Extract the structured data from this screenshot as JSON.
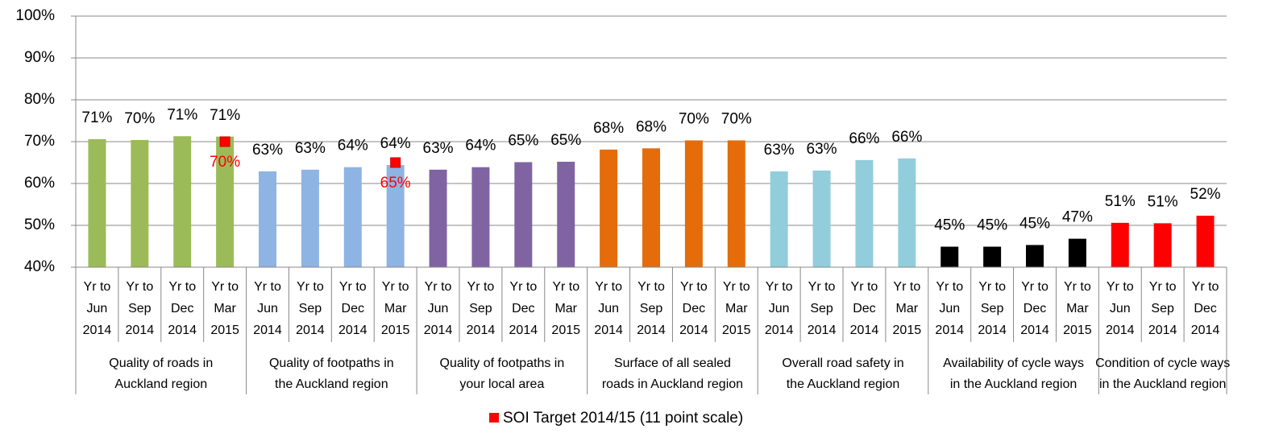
{
  "chart_data": {
    "type": "bar",
    "ylim": [
      40,
      100
    ],
    "yticks": [
      {
        "value": 40,
        "label": "40%"
      },
      {
        "value": 50,
        "label": "50%"
      },
      {
        "value": 60,
        "label": "60%"
      },
      {
        "value": 70,
        "label": "70%"
      },
      {
        "value": 80,
        "label": "80%"
      },
      {
        "value": 90,
        "label": "90%"
      },
      {
        "value": 100,
        "label": "100%"
      }
    ],
    "grid": true,
    "target_name": "SOI Target 2014/15 (11 point scale)",
    "target_color": "#ff0000",
    "groups": [
      {
        "name": [
          "Quality of roads in",
          "Auckland region"
        ],
        "color": "#9bbb59",
        "categories": [
          [
            "Yr to",
            "Jun",
            "2014"
          ],
          [
            "Yr to",
            "Sep",
            "2014"
          ],
          [
            "Yr to",
            "Dec",
            "2014"
          ],
          [
            "Yr to",
            "Mar",
            "2015"
          ]
        ],
        "values": [
          70.6,
          70.4,
          71.3,
          71.2
        ],
        "value_labels": [
          "71%",
          "70%",
          "71%",
          "71%"
        ],
        "target_values": [
          null,
          null,
          null,
          70
        ],
        "target_labels": [
          null,
          null,
          null,
          "70%"
        ]
      },
      {
        "name": [
          "Quality of footpaths in",
          "the Auckland region"
        ],
        "color": "#8eb4e3",
        "categories": [
          [
            "Yr to",
            "Jun",
            "2014"
          ],
          [
            "Yr to",
            "Sep",
            "2014"
          ],
          [
            "Yr to",
            "Dec",
            "2014"
          ],
          [
            "Yr to",
            "Mar",
            "2015"
          ]
        ],
        "values": [
          62.9,
          63.3,
          63.9,
          64.4
        ],
        "value_labels": [
          "63%",
          "63%",
          "64%",
          "64%"
        ],
        "target_values": [
          null,
          null,
          null,
          65
        ],
        "target_labels": [
          null,
          null,
          null,
          "65%"
        ]
      },
      {
        "name": [
          "Quality of footpaths in",
          "your local area"
        ],
        "color": "#8064a2",
        "categories": [
          [
            "Yr to",
            "Jun",
            "2014"
          ],
          [
            "Yr to",
            "Sep",
            "2014"
          ],
          [
            "Yr to",
            "Dec",
            "2014"
          ],
          [
            "Yr to",
            "Mar",
            "2015"
          ]
        ],
        "values": [
          63.3,
          63.9,
          65.1,
          65.2
        ],
        "value_labels": [
          "63%",
          "64%",
          "65%",
          "65%"
        ]
      },
      {
        "name": [
          "Surface of all sealed",
          "roads in Auckland region"
        ],
        "color": "#e46c0a",
        "categories": [
          [
            "Yr to",
            "Jun",
            "2014"
          ],
          [
            "Yr to",
            "Sep",
            "2014"
          ],
          [
            "Yr to",
            "Dec",
            "2014"
          ],
          [
            "Yr to",
            "Mar",
            "2015"
          ]
        ],
        "values": [
          68.1,
          68.4,
          70.3,
          70.3
        ],
        "value_labels": [
          "68%",
          "68%",
          "70%",
          "70%"
        ]
      },
      {
        "name": [
          "Overall road safety in",
          "the Auckland region"
        ],
        "color": "#92cddc",
        "categories": [
          [
            "Yr to",
            "Jun",
            "2014"
          ],
          [
            "Yr to",
            "Sep",
            "2014"
          ],
          [
            "Yr to",
            "Dec",
            "2014"
          ],
          [
            "Yr to",
            "Mar",
            "2015"
          ]
        ],
        "values": [
          62.9,
          63.1,
          65.6,
          66.0
        ],
        "value_labels": [
          "63%",
          "63%",
          "66%",
          "66%"
        ]
      },
      {
        "name": [
          "Availability of cycle ways",
          "in the Auckland region"
        ],
        "color": "#000000",
        "categories": [
          [
            "Yr to",
            "Jun",
            "2014"
          ],
          [
            "Yr to",
            "Sep",
            "2014"
          ],
          [
            "Yr to",
            "Dec",
            "2014"
          ],
          [
            "Yr to",
            "Mar",
            "2015"
          ]
        ],
        "values": [
          44.9,
          44.9,
          45.3,
          46.8
        ],
        "value_labels": [
          "45%",
          "45%",
          "45%",
          "47%"
        ]
      },
      {
        "name": [
          "Condition of cycle ways",
          "in the Auckland region"
        ],
        "color": "#ff0000",
        "categories": [
          [
            "Yr to",
            "Jun",
            "2014"
          ],
          [
            "Yr to",
            "Sep",
            "2014"
          ],
          [
            "Yr to",
            "Dec",
            "2014"
          ]
        ],
        "values": [
          50.6,
          50.5,
          52.3
        ],
        "value_labels": [
          "51%",
          "51%",
          "52%"
        ]
      }
    ]
  }
}
